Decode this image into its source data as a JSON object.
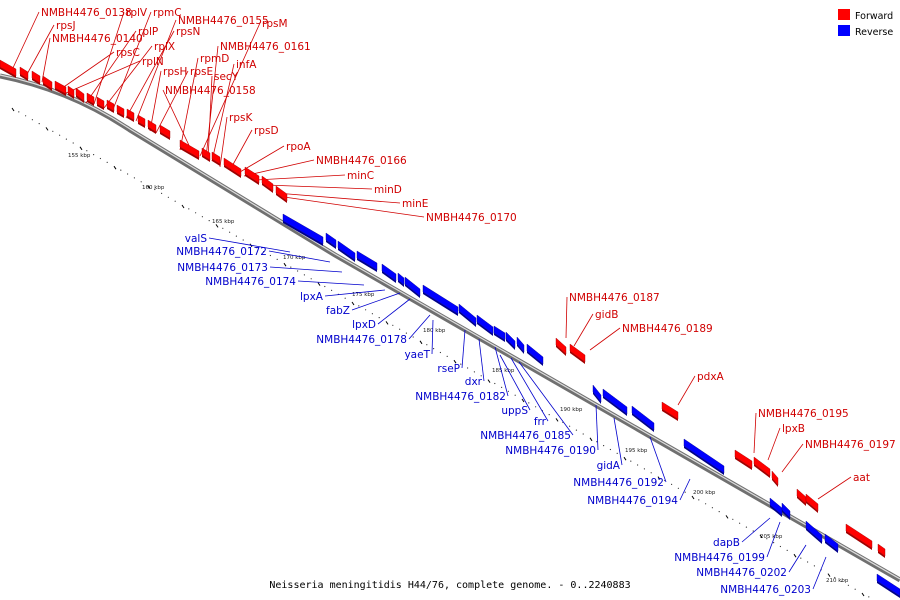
{
  "caption": "Neisseria meningitidis H44/76, complete genome. - 0..2240883",
  "legend": [
    {
      "label": "Forward",
      "color": "#ff0000"
    },
    {
      "label": "Reverse",
      "color": "#0000ff"
    }
  ],
  "colors": {
    "forward": "#ff0000",
    "reverse": "#0000ff",
    "backbone": "#707070"
  },
  "ticks": [
    "155 kbp",
    "160 kbp",
    "165 kbp",
    "170 kbp",
    "175 kbp",
    "180 kbp",
    "185 kbp",
    "190 kbp",
    "195 kbp",
    "200 kbp",
    "205 kbp",
    "210 kbp"
  ],
  "forward_labels": [
    "NMBH4476_0138",
    "rpsJ",
    "NMBH4476_0140",
    "rpsC",
    "rplN",
    "rplP",
    "rplV",
    "rplX",
    "rpmC",
    "rpsN",
    "NMBH4476_0155",
    "rpsH",
    "rpsE",
    "rpmD",
    "NMBH4476_0158",
    "rpsM",
    "NMBH4476_0161",
    "secY",
    "infA",
    "rpsK",
    "rpsD",
    "rpoA",
    "NMBH4476_0166",
    "minC",
    "minD",
    "minE",
    "NMBH4476_0170",
    "NMBH4476_0187",
    "gidB",
    "NMBH4476_0189",
    "pdxA",
    "NMBH4476_0195",
    "lpxB",
    "NMBH4476_0197",
    "aat"
  ],
  "reverse_labels": [
    "valS",
    "NMBH4476_0172",
    "NMBH4476_0173",
    "NMBH4476_0174",
    "lpxA",
    "fabZ",
    "lpxD",
    "NMBH4476_0178",
    "yaeT",
    "rseP",
    "dxr",
    "NMBH4476_0182",
    "uppS",
    "frr",
    "NMBH4476_0185",
    "NMBH4476_0190",
    "gidA",
    "NMBH4476_0192",
    "NMBH4476_0194",
    "dapB",
    "NMBH4476_0199",
    "NMBH4476_0202",
    "NMBH4476_0203"
  ]
}
